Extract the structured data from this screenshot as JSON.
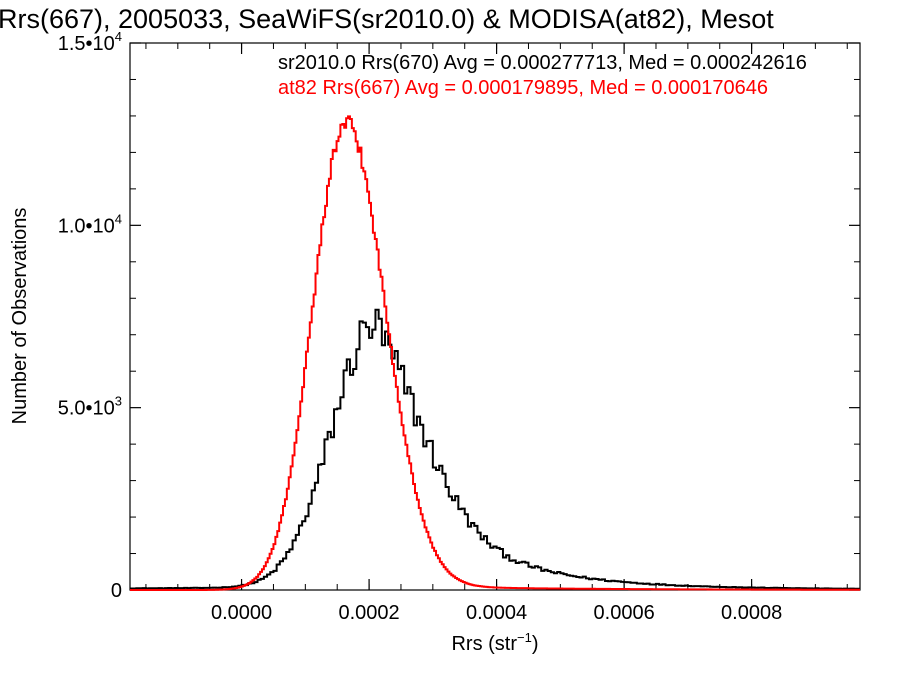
{
  "chart_data": {
    "type": "histogram",
    "title": "Rrs(667), 2005033, SeaWiFS(sr2010.0) & MODISA(at82), Mesot",
    "xlabel": "Rrs (str",
    "xlabel_superscript": "−1",
    "xlabel_close": ")",
    "ylabel": "Number of Observations",
    "xlim": [
      -0.000175,
      0.00097
    ],
    "ylim": [
      0,
      15000
    ],
    "x_ticks": [
      {
        "value": 0.0,
        "label": "0.0000"
      },
      {
        "value": 0.0002,
        "label": "0.0002"
      },
      {
        "value": 0.0004,
        "label": "0.0004"
      },
      {
        "value": 0.0006,
        "label": "0.0006"
      },
      {
        "value": 0.0008,
        "label": "0.0008"
      }
    ],
    "y_ticks": [
      {
        "value": 0,
        "label": "0",
        "exp": ""
      },
      {
        "value": 5000,
        "label": "5.0•10",
        "exp": "3"
      },
      {
        "value": 10000,
        "label": "1.0•10",
        "exp": "4"
      },
      {
        "value": 15000,
        "label": "1.5•10",
        "exp": "4"
      }
    ],
    "annotations": [
      {
        "text": "sr2010.0 Rrs(670) Avg = 0.000277713, Med = 0.000242616",
        "color": "#000000"
      },
      {
        "text": "at82 Rrs(667) Avg = 0.000179895, Med = 0.000170646",
        "color": "#ff0000"
      }
    ],
    "series": [
      {
        "color": "#000000",
        "bin_width": 5e-06,
        "x_start": -0.000175,
        "shape": {
          "type": "skewed_peak",
          "peak": 0.00021,
          "height": 7200,
          "sigma_left": 6.8e-05,
          "tau_right": 0.000125,
          "noise": 0.09
        },
        "floor": 0.012
      },
      {
        "color": "#ff0000",
        "bin_width": 3e-06,
        "x_start": -0.000175,
        "shape": {
          "type": "gaussian_asym",
          "peak": 0.000163,
          "height": 12700,
          "sigma_left": 5.2e-05,
          "sigma_right": 6.2e-05,
          "noise": 0.015
        },
        "floor": 0.0
      }
    ]
  }
}
